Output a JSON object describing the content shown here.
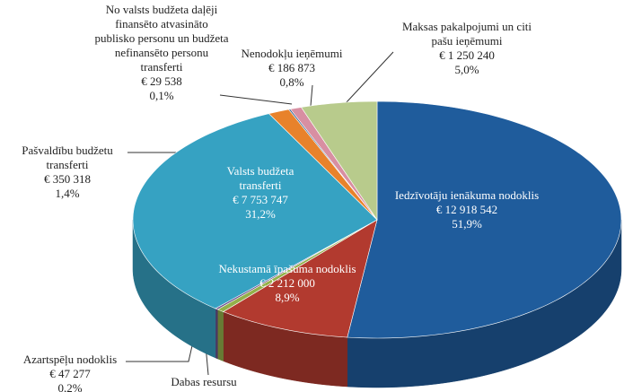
{
  "chart_data": {
    "type": "pie3d",
    "categories": [
      "Iedzīvotāju ienākuma nodoklis",
      "Nekustamā īpašuma nodoklis",
      "Dabas resursu",
      "Azartspēļu nodoklis",
      "Valsts budžeta transferti",
      "Pašvaldību budžetu transferti",
      "No valsts budžeta daļēji finansēto atvasināto publisko personu un budžeta nefinansēto personu transferti",
      "Nenodokļu ieņēmumi",
      "Maksas pakalpojumi un citi pašu ieņēmumi"
    ],
    "values": [
      12918542,
      2212000,
      120000,
      47277,
      7753747,
      350318,
      29538,
      186873,
      1250240
    ],
    "value_labels": [
      "€ 12 918 542",
      "€ 2 212 000",
      null,
      "€ 47 277",
      "€ 7 753 747",
      "€ 350 318",
      "€ 29 538",
      "€ 186 873",
      "€ 1 250 240"
    ],
    "shares": [
      51.9,
      8.9,
      null,
      0.2,
      31.2,
      1.4,
      0.1,
      0.8,
      5.0
    ],
    "share_labels": [
      "51,9%",
      "8,9%",
      null,
      "0,2%",
      "31,2%",
      "1,4%",
      "0,1%",
      "0,8%",
      "5,0%"
    ],
    "colors": [
      "#1f5c9c",
      "#b23a2f",
      "#93b04a",
      "#6b4f8c",
      "#36a2c2",
      "#e8822b",
      "#2f5f8f",
      "#d88fa2",
      "#b8cb8c"
    ]
  }
}
